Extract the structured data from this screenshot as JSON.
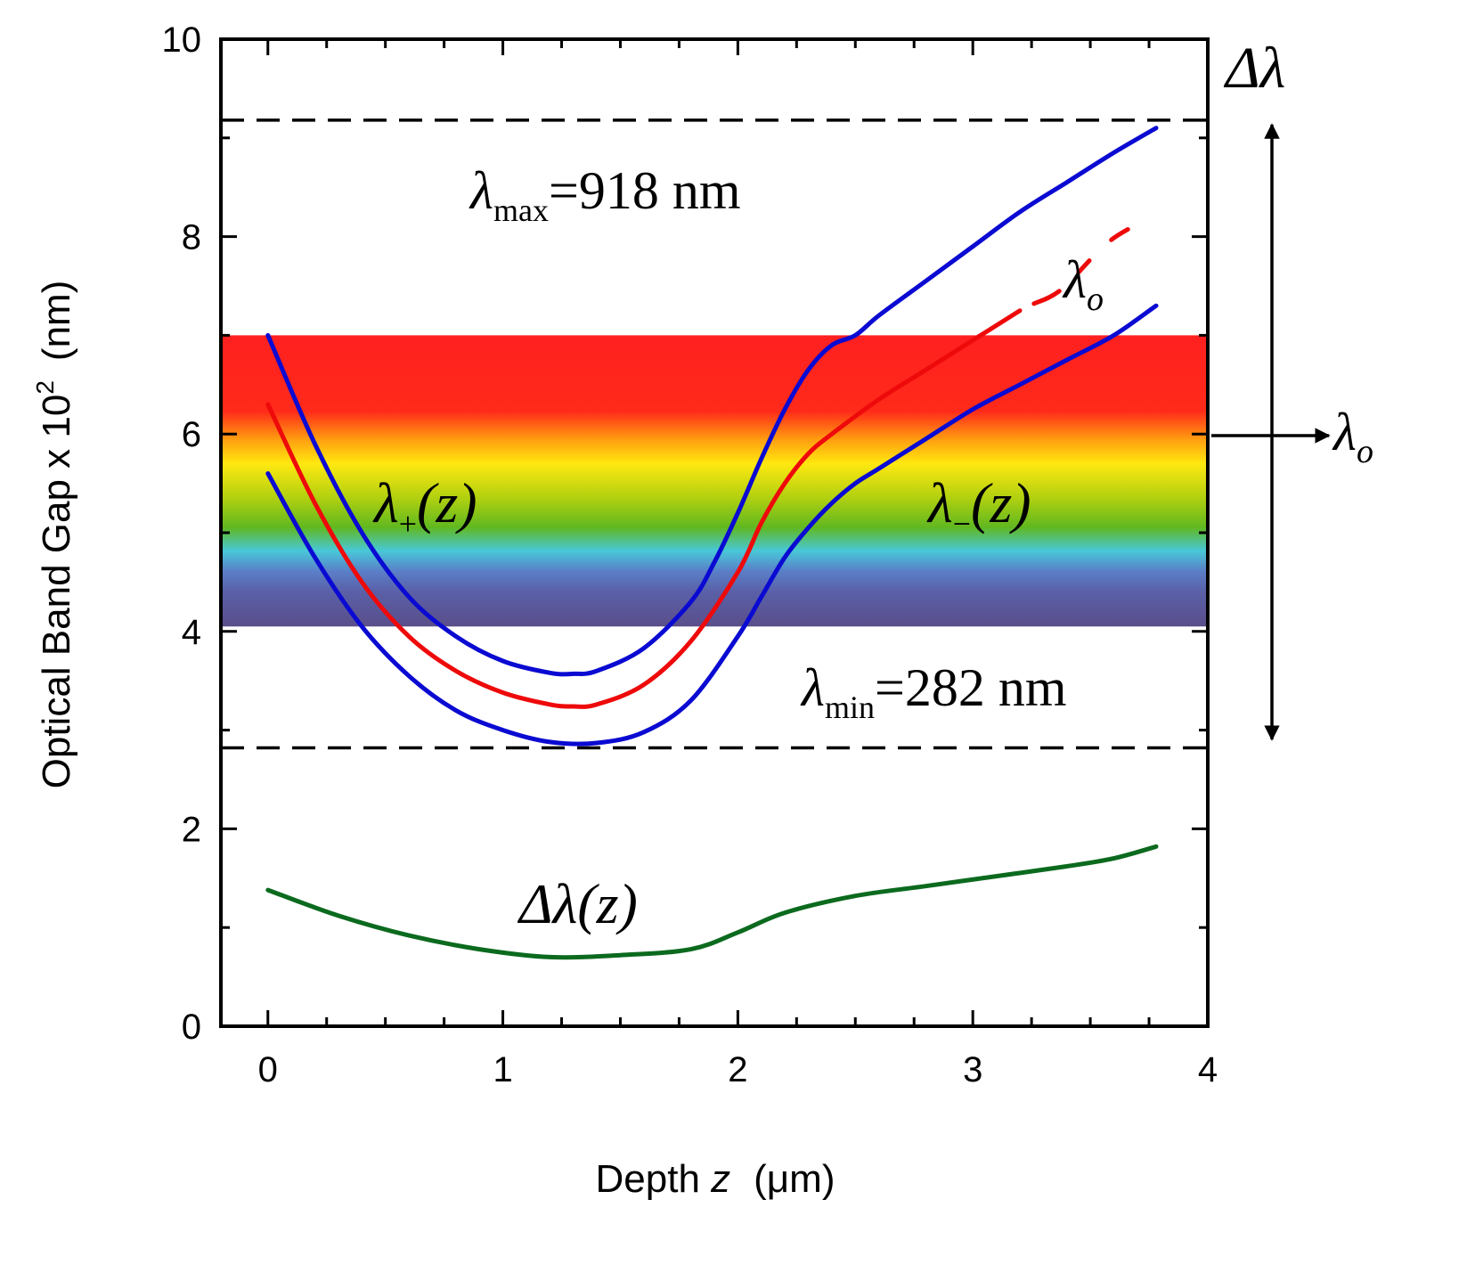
{
  "chart_data": {
    "type": "line",
    "xlabel": {
      "main": "Depth ",
      "var": "z",
      "unit": "(μm)"
    },
    "ylabel": {
      "main": "Optical Band Gap x 10",
      "sup": "2",
      "unit": "(nm)"
    },
    "xlim": [
      -0.2,
      4
    ],
    "ylim": [
      0,
      10
    ],
    "xticks": [
      0,
      1,
      2,
      3,
      4
    ],
    "yticks": [
      0,
      2,
      4,
      6,
      8,
      10
    ],
    "spectrum_band": {
      "y_min": 4.05,
      "y_max": 7.0
    },
    "reference_lines": [
      {
        "name": "lambda-max",
        "y": 9.18
      },
      {
        "name": "lambda-min",
        "y": 2.82
      }
    ],
    "series": [
      {
        "name": "lambda-plus",
        "color": "#0a0ad2",
        "x": [
          0,
          0.2,
          0.4,
          0.6,
          0.8,
          1.0,
          1.2,
          1.3,
          1.4,
          1.6,
          1.8,
          1.9,
          2.0,
          2.1,
          2.2,
          2.3,
          2.4,
          2.5,
          2.6,
          2.8,
          3.0,
          3.2,
          3.4,
          3.6,
          3.78
        ],
        "y": [
          7.0,
          5.9,
          5.0,
          4.35,
          3.95,
          3.7,
          3.58,
          3.57,
          3.6,
          3.83,
          4.3,
          4.7,
          5.2,
          5.75,
          6.25,
          6.65,
          6.9,
          7.0,
          7.2,
          7.55,
          7.9,
          8.25,
          8.55,
          8.85,
          9.1
        ]
      },
      {
        "name": "lambda-o",
        "color": "#ee0a0a",
        "x": [
          0,
          0.2,
          0.4,
          0.6,
          0.8,
          1.0,
          1.2,
          1.3,
          1.4,
          1.6,
          1.8,
          2.0,
          2.1,
          2.2,
          2.3,
          2.4,
          2.6,
          2.8,
          3.0,
          3.2
        ],
        "y": [
          6.3,
          5.3,
          4.5,
          3.95,
          3.6,
          3.38,
          3.26,
          3.24,
          3.26,
          3.46,
          3.9,
          4.6,
          5.1,
          5.5,
          5.8,
          6.0,
          6.35,
          6.65,
          6.95,
          7.25
        ]
      },
      {
        "name": "lambda-o-tail",
        "color": "#ee0a0a",
        "dashed": true,
        "x": [
          3.26,
          3.38,
          3.58,
          3.78
        ],
        "y": [
          7.32,
          7.47,
          7.95,
          8.22
        ]
      },
      {
        "name": "lambda-minus",
        "color": "#0a0ad2",
        "x": [
          0,
          0.2,
          0.4,
          0.6,
          0.8,
          1.0,
          1.2,
          1.4,
          1.6,
          1.8,
          2.0,
          2.1,
          2.2,
          2.3,
          2.4,
          2.5,
          2.6,
          2.8,
          3.0,
          3.2,
          3.4,
          3.6,
          3.78
        ],
        "y": [
          5.6,
          4.75,
          4.05,
          3.55,
          3.2,
          3.0,
          2.88,
          2.87,
          2.98,
          3.3,
          3.95,
          4.35,
          4.75,
          5.05,
          5.3,
          5.5,
          5.65,
          5.95,
          6.25,
          6.5,
          6.75,
          7.0,
          7.3
        ]
      },
      {
        "name": "delta-lambda",
        "color": "#0b6a1e",
        "x": [
          0,
          0.3,
          0.6,
          0.9,
          1.2,
          1.5,
          1.8,
          2.0,
          2.2,
          2.5,
          2.8,
          3.1,
          3.4,
          3.6,
          3.78
        ],
        "y": [
          1.38,
          1.12,
          0.92,
          0.78,
          0.7,
          0.72,
          0.78,
          0.95,
          1.15,
          1.32,
          1.42,
          1.52,
          1.62,
          1.7,
          1.82
        ]
      }
    ],
    "annotations": {
      "lambda_max": {
        "sym": "λ",
        "sub": "max",
        "value": "=918 nm"
      },
      "lambda_min": {
        "sym": "λ",
        "sub": "min",
        "value": "=282 nm"
      },
      "lambda_plus": {
        "sym": "λ",
        "sub": "+",
        "arg": "(z)"
      },
      "lambda_minus": {
        "sym": "λ",
        "sub": "−",
        "arg": "(z)"
      },
      "lambda_o_curve": {
        "sym": "λ",
        "sub": "o"
      },
      "lambda_o_right": {
        "sym": "λ",
        "sub": "o"
      },
      "delta_lambda_curve": {
        "text": "Δλ(z)"
      },
      "delta_lambda_top": {
        "text": "Δλ"
      }
    }
  }
}
